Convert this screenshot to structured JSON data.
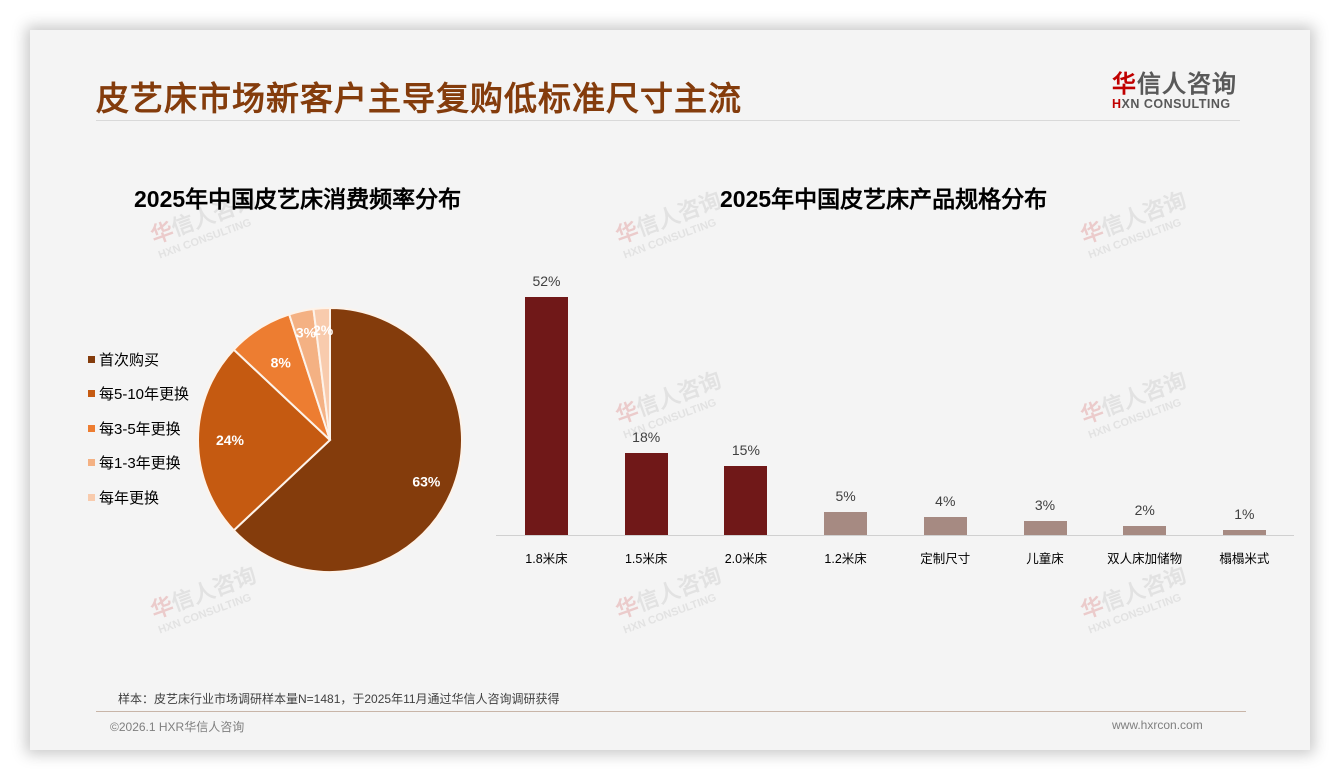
{
  "header": {
    "title": "皮艺床市场新客户主导复购低标准尺寸主流",
    "logo_cn_first": "华",
    "logo_cn_rest": "信人咨询",
    "logo_en_first": "H",
    "logo_en_rest": "XN CONSULTING"
  },
  "watermark": {
    "cn_first": "华",
    "cn_rest": "信人咨询",
    "en": "HXN CONSULTING"
  },
  "pie_chart": {
    "title": "2025年中国皮艺床消费频率分布",
    "legend": [
      {
        "label": "首次购买",
        "color": "#843c0c"
      },
      {
        "label": "每5-10年更换",
        "color": "#c55a11"
      },
      {
        "label": "每3-5年更换",
        "color": "#ed7d31"
      },
      {
        "label": "每1-3年更换",
        "color": "#f4b183"
      },
      {
        "label": "每年更换",
        "color": "#f8cbad"
      }
    ]
  },
  "bar_chart": {
    "title": "2025年中国皮艺床产品规格分布",
    "highlight_color": "#701818",
    "muted_color": "#a68a82"
  },
  "chart_data": [
    {
      "type": "pie",
      "title": "2025年中国皮艺床消费频率分布",
      "categories": [
        "首次购买",
        "每5-10年更换",
        "每3-5年更换",
        "每1-3年更换",
        "每年更换"
      ],
      "values": [
        63,
        24,
        8,
        3,
        2
      ],
      "value_labels": [
        "63%",
        "24%",
        "8%",
        "3%",
        "2%"
      ],
      "colors": [
        "#843c0c",
        "#c55a11",
        "#ed7d31",
        "#f4b183",
        "#f8cbad"
      ],
      "legend_position": "left",
      "unit": "%"
    },
    {
      "type": "bar",
      "title": "2025年中国皮艺床产品规格分布",
      "categories": [
        "1.8米床",
        "1.5米床",
        "2.0米床",
        "1.2米床",
        "定制尺寸",
        "儿童床",
        "双人床加储物",
        "榻榻米式"
      ],
      "values": [
        52,
        18,
        15,
        5,
        4,
        3,
        2,
        1
      ],
      "value_labels": [
        "52%",
        "18%",
        "15%",
        "5%",
        "4%",
        "3%",
        "2%",
        "1%"
      ],
      "colors": [
        "#701818",
        "#701818",
        "#701818",
        "#a68a82",
        "#a68a82",
        "#a68a82",
        "#a68a82",
        "#a68a82"
      ],
      "xlabel": "",
      "ylabel": "",
      "ylim": [
        0,
        55
      ],
      "grid": false,
      "unit": "%"
    }
  ],
  "footer": {
    "note": "样本：皮艺床行业市场调研样本量N=1481，于2025年11月通过华信人咨询调研获得",
    "copyright": "©2026.1 HXR华信人咨询",
    "website": "www.hxrcon.com"
  }
}
